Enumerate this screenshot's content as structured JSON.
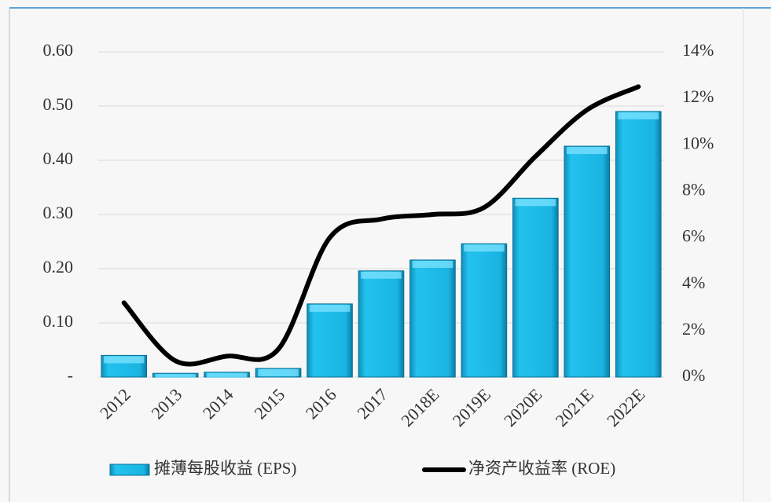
{
  "chart_data": {
    "type": "bar_line",
    "categories": [
      "2012",
      "2013",
      "2014",
      "2015",
      "2016",
      "2017",
      "2018E",
      "2019E",
      "2020E",
      "2021E",
      "2022E"
    ],
    "series": [
      {
        "name": "摊薄每股收益 (EPS)",
        "color": "#1cb6e4",
        "type": "bar",
        "axis": "y",
        "values": [
          0.04,
          0.007,
          0.009,
          0.016,
          0.135,
          0.196,
          0.216,
          0.246,
          0.33,
          0.426,
          0.49
        ]
      },
      {
        "name": "净资产收益率 (ROE)",
        "color": "#000000",
        "type": "line",
        "axis": "y2",
        "values": [
          3.2,
          0.7,
          0.9,
          1.2,
          6.0,
          6.8,
          7.0,
          7.3,
          9.5,
          11.5,
          12.5
        ]
      }
    ],
    "ylim": [
      0,
      0.6
    ],
    "yticks": [
      {
        "value": 0,
        "label": "-"
      },
      {
        "value": 0.1,
        "label": "0.10"
      },
      {
        "value": 0.2,
        "label": "0.20"
      },
      {
        "value": 0.3,
        "label": "0.30"
      },
      {
        "value": 0.4,
        "label": "0.40"
      },
      {
        "value": 0.5,
        "label": "0.50"
      },
      {
        "value": 0.6,
        "label": "0.60"
      }
    ],
    "y2lim": [
      0,
      14
    ],
    "y2ticks": [
      {
        "value": 0,
        "label": "0%"
      },
      {
        "value": 2,
        "label": "2%"
      },
      {
        "value": 4,
        "label": "4%"
      },
      {
        "value": 6,
        "label": "6%"
      },
      {
        "value": 8,
        "label": "8%"
      },
      {
        "value": 10,
        "label": "10%"
      },
      {
        "value": 12,
        "label": "12%"
      },
      {
        "value": 14,
        "label": "14%"
      }
    ],
    "grid": true,
    "legend": "bottom"
  }
}
